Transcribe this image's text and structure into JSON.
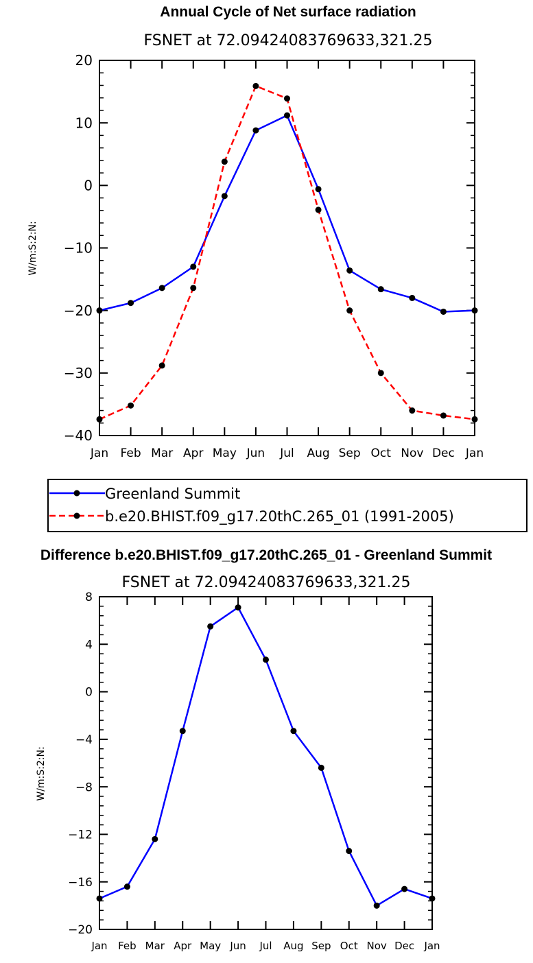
{
  "chart_data": [
    {
      "type": "line",
      "title": "Annual Cycle of Net surface radiation",
      "subtitle": "FSNET at 72.09424083769633,321.25",
      "ylabel": "W/m:S:2:N:",
      "categories": [
        "Jan",
        "Feb",
        "Mar",
        "Apr",
        "May",
        "Jun",
        "Jul",
        "Aug",
        "Sep",
        "Oct",
        "Nov",
        "Dec",
        "Jan"
      ],
      "ylim": [
        -40,
        20
      ],
      "yticks": [
        20,
        10,
        0,
        -10,
        -20,
        -30,
        -40
      ],
      "series": [
        {
          "name": "Greenland Summit",
          "color": "#0000ff",
          "dash": "solid",
          "values": [
            -20.0,
            -18.8,
            -16.4,
            -13.0,
            -1.7,
            8.8,
            11.2,
            -0.6,
            -13.6,
            -16.6,
            -18.0,
            -20.2,
            -20.0
          ]
        },
        {
          "name": "b.e20.BHIST.f09_g17.20thC.265_01 (1991-2005)",
          "color": "#ff0000",
          "dash": "dashed",
          "values": [
            -37.4,
            -35.2,
            -28.8,
            -16.4,
            3.8,
            15.9,
            13.9,
            -3.9,
            -20.0,
            -30.0,
            -36.0,
            -36.8,
            -37.4
          ]
        }
      ],
      "legend_position": "bottom",
      "grid": false
    },
    {
      "type": "line",
      "title": "Difference b.e20.BHIST.f09_g17.20thC.265_01 - Greenland Summit",
      "subtitle": "FSNET at 72.09424083769633,321.25",
      "ylabel": "W/m:S:2:N:",
      "categories": [
        "Jan",
        "Feb",
        "Mar",
        "Apr",
        "May",
        "Jun",
        "Jul",
        "Aug",
        "Sep",
        "Oct",
        "Nov",
        "Dec",
        "Jan"
      ],
      "ylim": [
        -20,
        8
      ],
      "yticks": [
        8,
        4,
        0,
        -4,
        -8,
        -12,
        -16,
        -20
      ],
      "series": [
        {
          "color": "#0000ff",
          "dash": "solid",
          "values": [
            -17.4,
            -16.4,
            -12.4,
            -3.3,
            5.5,
            7.1,
            2.7,
            -3.3,
            -6.4,
            -13.4,
            -18.0,
            -16.6,
            -17.4
          ]
        }
      ],
      "grid": false
    }
  ]
}
